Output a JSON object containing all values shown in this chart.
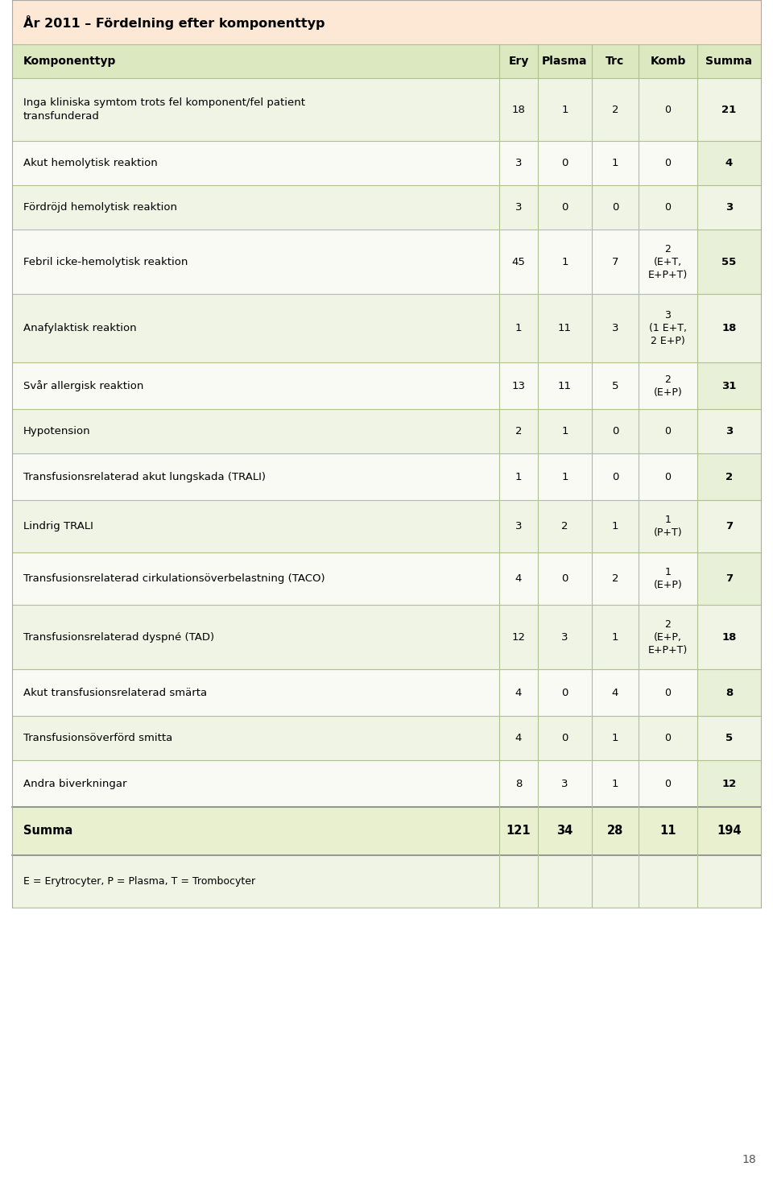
{
  "title": "År 2011 – Fördelning efter komponenttyp",
  "columns": [
    "Komponenttyp",
    "Ery",
    "Plasma",
    "Trc",
    "Komb",
    "Summa"
  ],
  "rows": [
    {
      "label": "Inga kliniska symtom trots fel komponent/fel patient\ntransfunderad",
      "ery": "18",
      "plasma": "1",
      "trc": "2",
      "komb": "0",
      "summa": "21"
    },
    {
      "label": "Akut hemolytisk reaktion",
      "ery": "3",
      "plasma": "0",
      "trc": "1",
      "komb": "0",
      "summa": "4"
    },
    {
      "label": "Fördröjd hemolytisk reaktion",
      "ery": "3",
      "plasma": "0",
      "trc": "0",
      "komb": "0",
      "summa": "3"
    },
    {
      "label": "Febril icke-hemolytisk reaktion",
      "ery": "45",
      "plasma": "1",
      "trc": "7",
      "komb": "2\n(E+T,\nE+P+T)",
      "summa": "55"
    },
    {
      "label": "Anafylaktisk reaktion",
      "ery": "1",
      "plasma": "11",
      "trc": "3",
      "komb": "3\n(1 E+T,\n2 E+P)",
      "summa": "18"
    },
    {
      "label": "Svår allergisk reaktion",
      "ery": "13",
      "plasma": "11",
      "trc": "5",
      "komb": "2\n(E+P)",
      "summa": "31"
    },
    {
      "label": "Hypotension",
      "ery": "2",
      "plasma": "1",
      "trc": "0",
      "komb": "0",
      "summa": "3"
    },
    {
      "label": "Transfusionsrelaterad akut lungskada (TRALI)",
      "ery": "1",
      "plasma": "1",
      "trc": "0",
      "komb": "0",
      "summa": "2"
    },
    {
      "label": "Lindrig TRALI",
      "ery": "3",
      "plasma": "2",
      "trc": "1",
      "komb": "1\n(P+T)",
      "summa": "7"
    },
    {
      "label": "Transfusionsrelaterad cirkulationsöverbelastning (TACO)",
      "ery": "4",
      "plasma": "0",
      "trc": "2",
      "komb": "1\n(E+P)",
      "summa": "7"
    },
    {
      "label": "Transfusionsrelaterad dyspné (TAD)",
      "ery": "12",
      "plasma": "3",
      "trc": "1",
      "komb": "2\n(E+P,\nE+P+T)",
      "summa": "18"
    },
    {
      "label": "Akut transfusionsrelaterad smärta",
      "ery": "4",
      "plasma": "0",
      "trc": "4",
      "komb": "0",
      "summa": "8"
    },
    {
      "label": "Transfusionsöverförd smitta",
      "ery": "4",
      "plasma": "0",
      "trc": "1",
      "komb": "0",
      "summa": "5"
    },
    {
      "label": "Andra biverkningar",
      "ery": "8",
      "plasma": "3",
      "trc": "1",
      "komb": "0",
      "summa": "12"
    }
  ],
  "summa_row": {
    "label": "Summa",
    "ery": "121",
    "plasma": "34",
    "trc": "28",
    "komb": "11",
    "summa": "194"
  },
  "footnote": "E = Erytrocyter, P = Plasma, T = Trombocyter",
  "page_number": "18",
  "title_bg": "#fce8d5",
  "header_bg": "#dce8c0",
  "row_bg_even": "#eff4e4",
  "row_bg_odd": "#f8faf3",
  "summa_bg": "#e8f0d0",
  "footnote_bg": "#eff4e4",
  "line_color": "#b8c8a0",
  "text_color": "#000000"
}
